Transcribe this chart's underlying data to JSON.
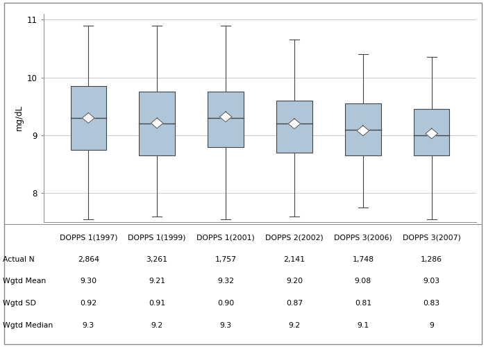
{
  "categories": [
    "DOPPS 1(1997)",
    "DOPPS 1(1999)",
    "DOPPS 1(2001)",
    "DOPPS 2(2002)",
    "DOPPS 3(2006)",
    "DOPPS 3(2007)"
  ],
  "actual_n": [
    "2,864",
    "3,261",
    "1,757",
    "2,141",
    "1,748",
    "1,286"
  ],
  "wgtd_mean": [
    "9.30",
    "9.21",
    "9.32",
    "9.20",
    "9.08",
    "9.03"
  ],
  "wgtd_sd": [
    "0.92",
    "0.91",
    "0.90",
    "0.87",
    "0.81",
    "0.83"
  ],
  "wgtd_median": [
    "9.3",
    "9.2",
    "9.3",
    "9.2",
    "9.1",
    "9"
  ],
  "boxes": [
    {
      "whisker_low": 7.55,
      "q1": 8.75,
      "median": 9.3,
      "q3": 9.85,
      "whisker_high": 10.9,
      "mean": 9.3
    },
    {
      "whisker_low": 7.6,
      "q1": 8.65,
      "median": 9.2,
      "q3": 9.75,
      "whisker_high": 10.9,
      "mean": 9.21
    },
    {
      "whisker_low": 7.55,
      "q1": 8.8,
      "median": 9.3,
      "q3": 9.75,
      "whisker_high": 10.9,
      "mean": 9.32
    },
    {
      "whisker_low": 7.6,
      "q1": 8.7,
      "median": 9.2,
      "q3": 9.6,
      "whisker_high": 10.65,
      "mean": 9.2
    },
    {
      "whisker_low": 7.75,
      "q1": 8.65,
      "median": 9.1,
      "q3": 9.55,
      "whisker_high": 10.4,
      "mean": 9.08
    },
    {
      "whisker_low": 7.55,
      "q1": 8.65,
      "median": 9.0,
      "q3": 9.45,
      "whisker_high": 10.35,
      "mean": 9.03
    }
  ],
  "ylim": [
    7.5,
    11.1
  ],
  "yticks": [
    8,
    9,
    10,
    11
  ],
  "ylabel": "mg/dL",
  "box_color": "#afc5d8",
  "box_edge_color": "#444444",
  "whisker_color": "#444444",
  "median_color": "#444444",
  "mean_marker_color": "white",
  "mean_marker_edge_color": "#444444",
  "background_color": "#ffffff",
  "grid_color": "#cccccc",
  "table_row_labels": [
    "Actual N",
    "Wgtd Mean",
    "Wgtd SD",
    "Wgtd Median"
  ],
  "fig_width": 7.0,
  "fig_height": 5.0
}
